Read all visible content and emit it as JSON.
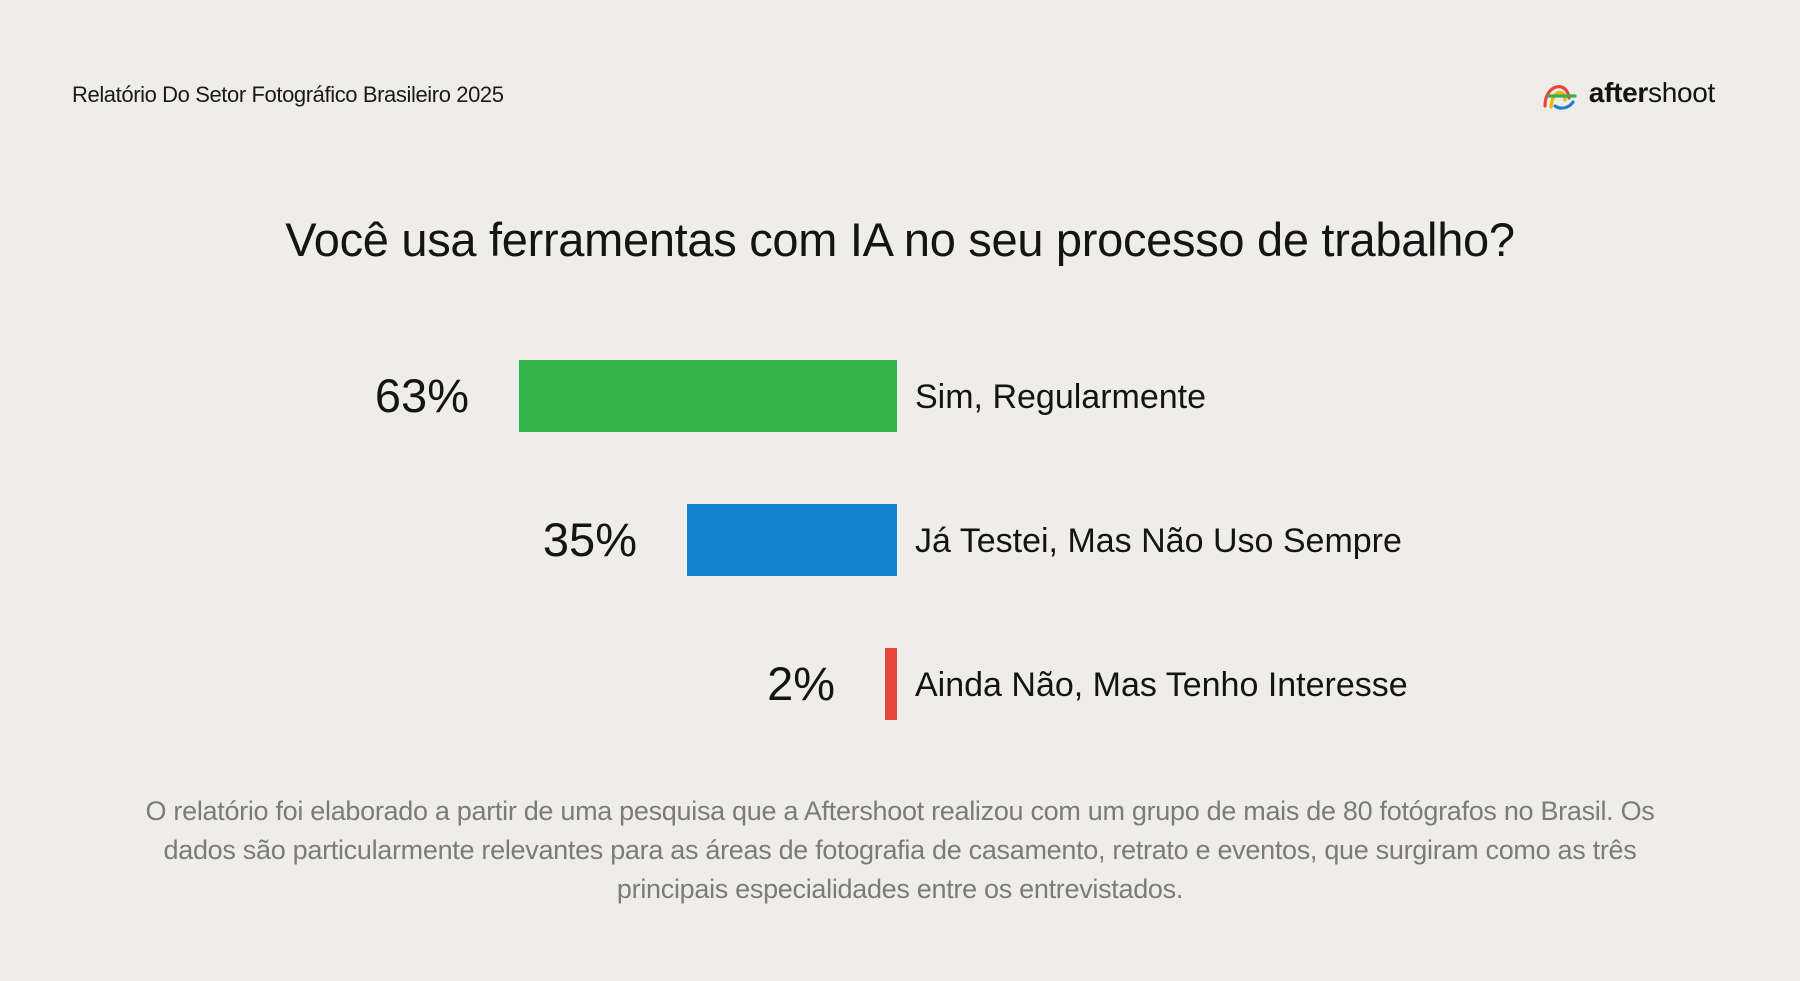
{
  "header": {
    "report_title": "Relatório Do Setor Fotográfico Brasileiro 2025",
    "logo": {
      "icon": "aftershoot-logo-icon",
      "text_bold": "after",
      "text_regular": "shoot",
      "colors": [
        "#e8453c",
        "#f5b400",
        "#31b44b",
        "#1a82cc"
      ]
    }
  },
  "chart_data": {
    "type": "bar",
    "orientation": "horizontal",
    "title": "Você usa ferramentas com IA no seu processo de trabalho?",
    "categories": [
      "Sim, Regularmente",
      "Já Testei, Mas Não Uso Sempre",
      "Ainda Não, Mas Tenho Interesse"
    ],
    "values": [
      63,
      35,
      2
    ],
    "value_labels": [
      "63%",
      "35%",
      "2%"
    ],
    "colors": [
      "#32b44b",
      "#1583cf",
      "#e8453c"
    ],
    "xlim": [
      0,
      63
    ],
    "grid": false,
    "legend": "none"
  },
  "footnote": "O relatório foi elaborado a partir de uma pesquisa que a Aftershoot realizou com um grupo de mais de 80 fotógrafos no Brasil. Os dados são particularmente relevantes para as áreas de fotografia de casamento, retrato e eventos, que surgiram como as três principais especialidades entre os entrevistados."
}
